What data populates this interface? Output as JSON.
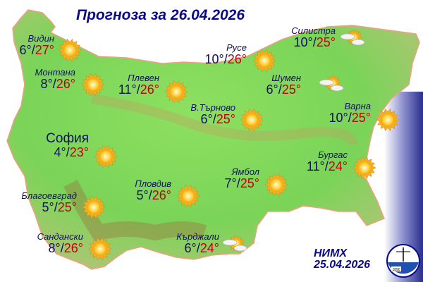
{
  "title": "Прогноза за 26.04.2026",
  "cities": [
    {
      "name": "Видин",
      "min": "6°",
      "max": "27°",
      "icon": "sunny"
    },
    {
      "name": "Монтана",
      "min": "8°",
      "max": "26°",
      "icon": "sunny"
    },
    {
      "name": "Плевен",
      "min": "11°",
      "max": "26°",
      "icon": "sunny"
    },
    {
      "name": "Русе",
      "min": "10°",
      "max": "26°",
      "icon": "sunny"
    },
    {
      "name": "Силистра",
      "min": "10°",
      "max": "25°",
      "icon": "partly-cloudy"
    },
    {
      "name": "Шумен",
      "min": "6°",
      "max": "25°",
      "icon": "partly-cloudy"
    },
    {
      "name": "В.Търново",
      "min": "6°",
      "max": "25°",
      "icon": "sunny"
    },
    {
      "name": "Варна",
      "min": "10°",
      "max": "25°",
      "icon": "sunny"
    },
    {
      "name": "София",
      "min": "4°",
      "max": "23°",
      "icon": "sunny"
    },
    {
      "name": "Бургас",
      "min": "11°",
      "max": "24°",
      "icon": "sunny"
    },
    {
      "name": "Ямбол",
      "min": "7°",
      "max": "25°",
      "icon": "sunny"
    },
    {
      "name": "Пловдив",
      "min": "5°",
      "max": "26°",
      "icon": "sunny"
    },
    {
      "name": "Благоевград",
      "min": "5°",
      "max": "25°",
      "icon": "sunny"
    },
    {
      "name": "Сандански",
      "min": "8°",
      "max": "26°",
      "icon": "sunny"
    },
    {
      "name": "Кърджали",
      "min": "6°",
      "max": "24°",
      "icon": "partly-cloudy"
    }
  ],
  "footer": {
    "org": "НИМХ",
    "date": "25.04.2026"
  },
  "logo": {
    "year": "1890"
  },
  "colors": {
    "title": "#0a0a8c",
    "min_temp": "#101060",
    "max_temp": "#c00010",
    "land": "#7fd85a",
    "sea": "#3a3e9a"
  }
}
